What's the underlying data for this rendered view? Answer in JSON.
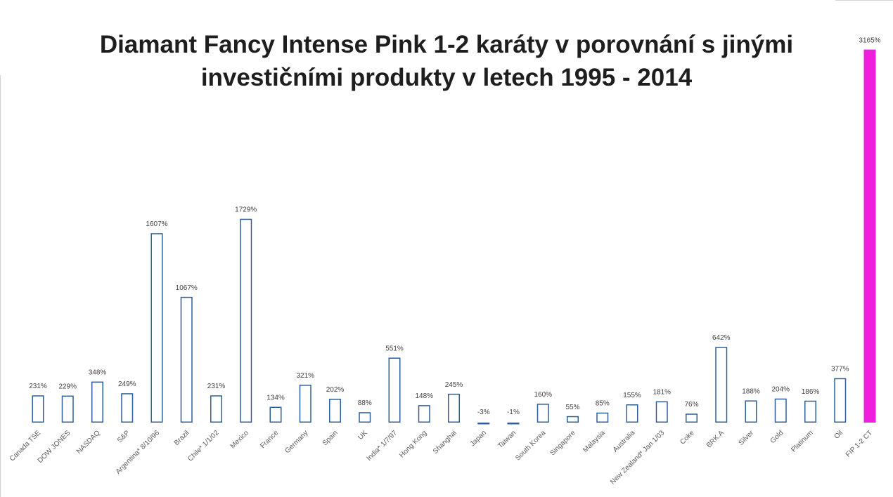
{
  "chart_data": {
    "type": "bar",
    "title": "Diamant Fancy Intense Pink 1-2 karáty v porovnání s jinými investičními produkty v letech 1995 - 2014",
    "xlabel": "",
    "ylabel": "",
    "grid": false,
    "legend": "none",
    "ylim": [
      -3,
      3165
    ],
    "colors": {
      "outline": "#2e5f9a",
      "highlight": "#f01fe0"
    },
    "categories": [
      "Canada TSE",
      "DOW JONES",
      "NASDAQ",
      "S&P",
      "Argentina* 8/10/96",
      "Brazil",
      "Chile* 1/1/02",
      "Mexico",
      "France",
      "Germany",
      "Spain",
      "UK",
      "India* 1/7/97",
      "Hong Kong",
      "Shanghai",
      "Japan",
      "Taiwan",
      "South Korea",
      "Singapore",
      "Malaysia",
      "Australia",
      "New Zealand* Jan 1/03",
      "Coke",
      "BRK.A",
      "Silver",
      "Gold",
      "Platinum",
      "Oil",
      "FIP 1-2 CT"
    ],
    "values": [
      231,
      229,
      348,
      249,
      1607,
      1067,
      231,
      1729,
      134,
      321,
      202,
      88,
      551,
      148,
      245,
      -3,
      -1,
      160,
      55,
      85,
      155,
      181,
      76,
      642,
      188,
      204,
      186,
      377,
      3165
    ],
    "data_labels": [
      "231%",
      "229%",
      "348%",
      "249%",
      "1607%",
      "1067%",
      "231%",
      "1729%",
      "134%",
      "321%",
      "202%",
      "88%",
      "551%",
      "148%",
      "245%",
      "-3%",
      "-1%",
      "160%",
      "55%",
      "85%",
      "155%",
      "181%",
      "76%",
      "642%",
      "188%",
      "204%",
      "186%",
      "377%",
      "3165%"
    ],
    "highlight_category": "FIP 1-2 CT"
  }
}
